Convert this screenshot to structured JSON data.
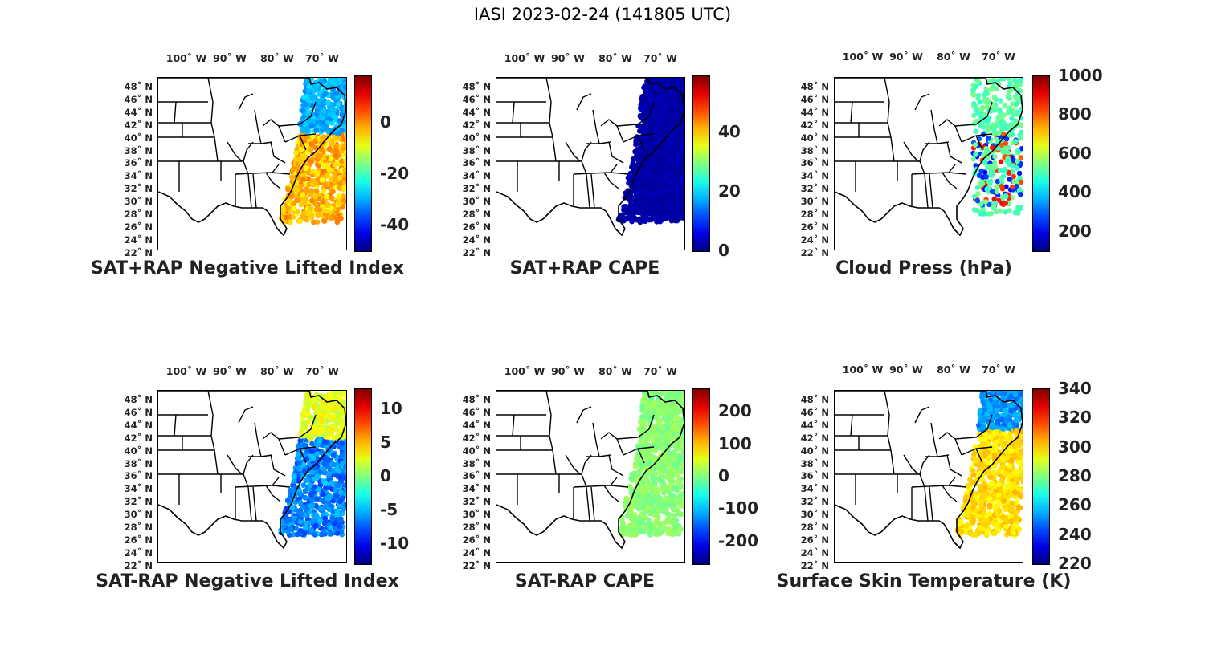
{
  "title": "IASI 2023-02-24 (141805 UTC)",
  "lon_ticks": [
    "100˚ W",
    "90˚ W",
    "80˚ W",
    "70˚ W"
  ],
  "lat_ticks": [
    "48˚ N",
    "46˚ N",
    "44˚ N",
    "42˚ N",
    "40˚ N",
    "38˚ N",
    "36˚ N",
    "34˚ N",
    "32˚ N",
    "30˚ N",
    "28˚ N",
    "26˚ N",
    "24˚ N",
    "22˚ N"
  ],
  "panels": [
    {
      "id": "sat-rap-nli-plus",
      "title": "SAT+RAP Negative Lifted Index",
      "colorbar": {
        "min": -50,
        "max": 18,
        "ticks": [
          "0",
          "-20",
          "-40"
        ],
        "tick_values": [
          0,
          -20,
          -40
        ]
      }
    },
    {
      "id": "sat-rap-cape-plus",
      "title": "SAT+RAP CAPE",
      "colorbar": {
        "min": 0,
        "max": 59,
        "ticks": [
          "40",
          "20",
          "0"
        ],
        "tick_values": [
          40,
          20,
          0
        ]
      }
    },
    {
      "id": "cloud-press",
      "title": "Cloud Press (hPa)",
      "colorbar": {
        "min": 100,
        "max": 1000,
        "ticks": [
          "1000",
          "800",
          "600",
          "400",
          "200"
        ],
        "tick_values": [
          1000,
          800,
          600,
          400,
          200
        ]
      }
    },
    {
      "id": "sat-rap-nli-minus",
      "title": "SAT-RAP Negative Lifted Index",
      "colorbar": {
        "min": -13,
        "max": 13,
        "ticks": [
          "10",
          "5",
          "0",
          "-5",
          "-10"
        ],
        "tick_values": [
          10,
          5,
          0,
          -5,
          -10
        ]
      }
    },
    {
      "id": "sat-rap-cape-minus",
      "title": "SAT-RAP CAPE",
      "colorbar": {
        "min": -270,
        "max": 270,
        "ticks": [
          "200",
          "100",
          "0",
          "-100",
          "-200"
        ],
        "tick_values": [
          200,
          100,
          0,
          -100,
          -200
        ]
      }
    },
    {
      "id": "surface-skin-temp",
      "title": "Surface Skin Temperature (K)",
      "colorbar": {
        "min": 220,
        "max": 340,
        "ticks": [
          "340",
          "320",
          "300",
          "280",
          "260",
          "240",
          "220"
        ],
        "tick_values": [
          340,
          320,
          300,
          280,
          260,
          240,
          220
        ]
      }
    }
  ],
  "colormap": "jet"
}
